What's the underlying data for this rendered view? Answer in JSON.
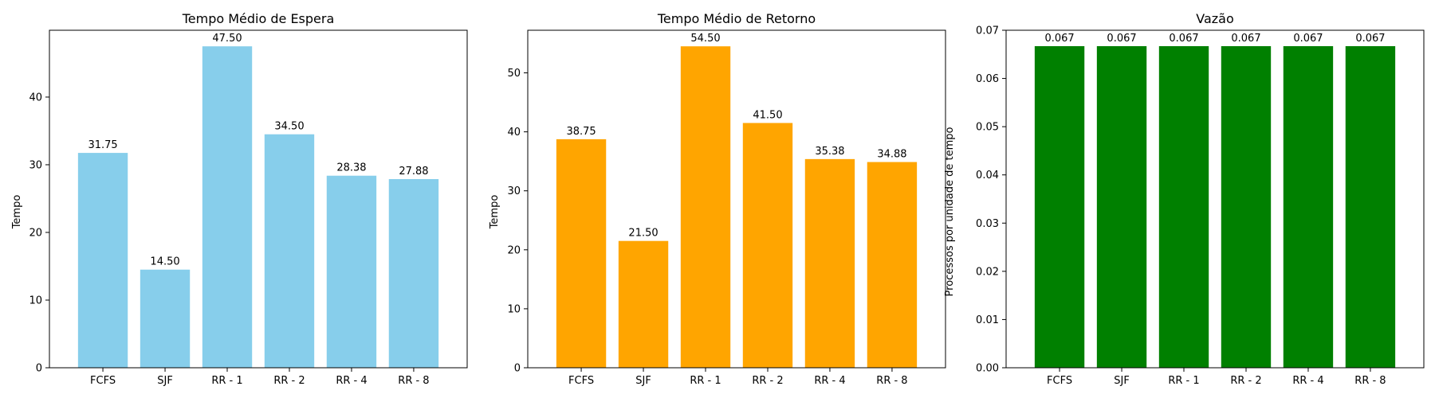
{
  "chart_data": [
    {
      "type": "bar",
      "title": "Tempo Médio de Espera",
      "xlabel": "",
      "ylabel": "Tempo",
      "categories": [
        "FCFS",
        "SJF",
        "RR - 1",
        "RR - 2",
        "RR - 4",
        "RR - 8"
      ],
      "values": [
        31.75,
        14.5,
        47.5,
        34.5,
        28.38,
        27.88
      ],
      "value_labels": [
        "31.75",
        "14.50",
        "47.50",
        "34.50",
        "28.38",
        "27.88"
      ],
      "ylim": [
        0,
        49.875
      ],
      "yticks": [
        0,
        10,
        20,
        30,
        40
      ],
      "ytick_labels": [
        "0",
        "10",
        "20",
        "30",
        "40"
      ],
      "color": "#87CEEB",
      "grid": false,
      "legend": "none"
    },
    {
      "type": "bar",
      "title": "Tempo Médio de Retorno",
      "xlabel": "",
      "ylabel": "Tempo",
      "categories": [
        "FCFS",
        "SJF",
        "RR - 1",
        "RR - 2",
        "RR - 4",
        "RR - 8"
      ],
      "values": [
        38.75,
        21.5,
        54.5,
        41.5,
        35.38,
        34.88
      ],
      "value_labels": [
        "38.75",
        "21.50",
        "54.50",
        "41.50",
        "35.38",
        "34.88"
      ],
      "ylim": [
        0,
        57.225
      ],
      "yticks": [
        0,
        10,
        20,
        30,
        40,
        50
      ],
      "ytick_labels": [
        "0",
        "10",
        "20",
        "30",
        "40",
        "50"
      ],
      "color": "#FFA500",
      "grid": false,
      "legend": "none"
    },
    {
      "type": "bar",
      "title": "Vazão",
      "xlabel": "",
      "ylabel": "Processos por unidade de tempo",
      "categories": [
        "FCFS",
        "SJF",
        "RR - 1",
        "RR - 2",
        "RR - 4",
        "RR - 8"
      ],
      "values": [
        0.0667,
        0.0667,
        0.0667,
        0.0667,
        0.0667,
        0.0667
      ],
      "value_labels": [
        "0.067",
        "0.067",
        "0.067",
        "0.067",
        "0.067",
        "0.067"
      ],
      "ylim": [
        0,
        0.07
      ],
      "yticks": [
        0,
        0.01,
        0.02,
        0.03,
        0.04,
        0.05,
        0.06,
        0.07
      ],
      "ytick_labels": [
        "0.00",
        "0.01",
        "0.02",
        "0.03",
        "0.04",
        "0.05",
        "0.06",
        "0.07"
      ],
      "color": "#008000",
      "grid": false,
      "legend": "none"
    }
  ]
}
